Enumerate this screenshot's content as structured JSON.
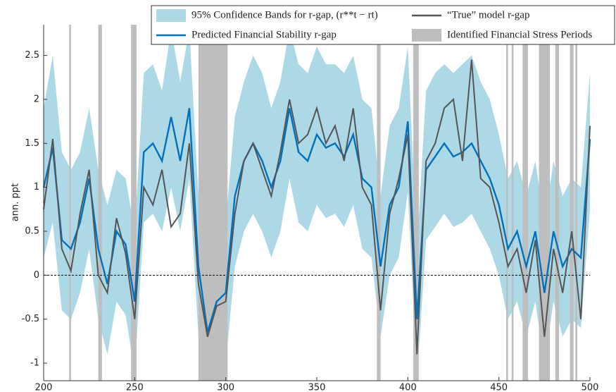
{
  "chart_data": {
    "type": "line",
    "ylabel": "ann. ppt",
    "x": [
      200,
      205,
      210,
      215,
      220,
      225,
      230,
      235,
      240,
      245,
      250,
      255,
      260,
      265,
      270,
      275,
      280,
      285,
      290,
      295,
      300,
      305,
      310,
      315,
      320,
      325,
      330,
      335,
      340,
      345,
      350,
      355,
      360,
      365,
      370,
      375,
      380,
      385,
      390,
      395,
      400,
      405,
      410,
      415,
      420,
      425,
      430,
      435,
      440,
      445,
      450,
      455,
      460,
      465,
      470,
      475,
      480,
      485,
      490,
      495,
      500
    ],
    "xlim": [
      200,
      500
    ],
    "ylim": [
      -1.2,
      2.85
    ],
    "xticks": [
      200,
      250,
      300,
      350,
      400,
      450,
      500
    ],
    "yticks": [
      -1,
      -0.5,
      0,
      0.5,
      1,
      1.5,
      2,
      2.5
    ],
    "reference_line": 0,
    "legend": "top-right",
    "band": {
      "name": "95% Confidence Bands for r-gap, (r**t − rt)",
      "color": "#add8e6",
      "upper": [
        1.9,
        2.5,
        1.4,
        1.2,
        1.4,
        1.9,
        1.2,
        0.8,
        1.2,
        1.1,
        0.5,
        2.3,
        2.4,
        2.1,
        2.8,
        2.2,
        2.8,
        0.9,
        0.1,
        0.5,
        0.6,
        1.8,
        2.2,
        2.5,
        2.3,
        1.9,
        2.2,
        2.8,
        2.4,
        2.3,
        2.6,
        2.4,
        2.4,
        2.3,
        2.5,
        2.0,
        1.9,
        0.9,
        1.7,
        1.9,
        2.6,
        0.3,
        2.1,
        2.3,
        2.4,
        2.3,
        2.4,
        2.5,
        2.2,
        2.0,
        1.6,
        1.1,
        1.3,
        0.9,
        1.3,
        0.6,
        1.3,
        0.9,
        1.1,
        1.0,
        2.3
      ],
      "lower": [
        0.2,
        0.6,
        -0.4,
        -0.5,
        -0.2,
        0.3,
        -0.5,
        -0.9,
        -0.3,
        -0.45,
        -1.1,
        0.6,
        0.7,
        0.5,
        1.0,
        0.5,
        1.1,
        -0.7,
        -1.2,
        -1.1,
        -1.0,
        0.1,
        0.5,
        0.7,
        0.5,
        0.2,
        0.5,
        1.1,
        0.6,
        0.5,
        0.8,
        0.65,
        0.7,
        0.55,
        0.8,
        0.3,
        0.2,
        -0.7,
        0.0,
        0.2,
        0.95,
        -1.2,
        0.4,
        0.55,
        0.7,
        0.55,
        0.6,
        0.7,
        0.5,
        0.3,
        0.0,
        -0.5,
        -0.3,
        -0.7,
        -0.3,
        -1.0,
        -0.3,
        -0.7,
        -0.5,
        -0.6,
        0.75
      ]
    },
    "series": [
      {
        "name": "Predicted Financial Stability r-gap",
        "color": "#0072bd",
        "values": [
          1.0,
          1.45,
          0.4,
          0.3,
          0.6,
          1.1,
          0.3,
          -0.1,
          0.5,
          0.35,
          -0.3,
          1.4,
          1.5,
          1.3,
          1.8,
          1.3,
          1.9,
          0.1,
          -0.65,
          -0.3,
          -0.2,
          0.9,
          1.3,
          1.5,
          1.3,
          1.0,
          1.3,
          1.9,
          1.4,
          1.3,
          1.6,
          1.45,
          1.5,
          1.35,
          1.6,
          1.1,
          1.0,
          0.1,
          0.8,
          1.0,
          1.75,
          -0.5,
          1.2,
          1.35,
          1.5,
          1.35,
          1.4,
          1.5,
          1.3,
          1.1,
          0.8,
          0.3,
          0.5,
          0.1,
          0.5,
          -0.2,
          0.5,
          0.1,
          0.3,
          0.2,
          1.55
        ]
      },
      {
        "name": "“True” model r-gap",
        "color": "#555555",
        "values": [
          0.75,
          1.55,
          0.3,
          0.05,
          0.7,
          1.2,
          0.0,
          -0.2,
          0.65,
          0.25,
          -0.5,
          1.0,
          0.8,
          1.2,
          0.55,
          0.7,
          1.5,
          -0.1,
          -0.7,
          -0.35,
          -0.3,
          0.7,
          1.3,
          1.5,
          1.2,
          0.9,
          1.4,
          2.0,
          1.5,
          1.6,
          1.9,
          1.5,
          1.7,
          1.3,
          1.9,
          1.0,
          0.8,
          -0.4,
          0.7,
          1.1,
          1.6,
          -0.9,
          1.3,
          1.5,
          1.9,
          2.0,
          1.3,
          2.45,
          1.1,
          1.0,
          0.6,
          0.1,
          0.3,
          -0.2,
          0.4,
          -0.7,
          0.3,
          -0.2,
          0.5,
          -0.5,
          1.7
        ]
      }
    ],
    "shaded": {
      "name": "Identified Financial Stress Periods",
      "color": "#bebebe",
      "periods": [
        [
          214,
          215
        ],
        [
          230,
          232
        ],
        [
          248,
          251
        ],
        [
          285,
          301
        ],
        [
          383,
          385
        ],
        [
          403,
          406
        ],
        [
          454,
          455
        ],
        [
          457,
          458
        ],
        [
          463,
          466
        ],
        [
          472,
          478
        ],
        [
          481,
          483
        ],
        [
          489,
          491
        ],
        [
          492,
          493
        ]
      ]
    }
  }
}
